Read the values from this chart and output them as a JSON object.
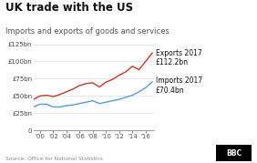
{
  "title": "UK trade with the US",
  "subtitle": "Imports and exports of goods and services",
  "source": "Source: Office for National Statistics",
  "export_label": "Exports 2017",
  "export_value": "£112.2bn",
  "import_label": "Imports 2017",
  "import_value": "£70.4bn",
  "years": [
    1999,
    2000,
    2001,
    2002,
    2003,
    2004,
    2005,
    2006,
    2007,
    2008,
    2009,
    2010,
    2011,
    2012,
    2013,
    2014,
    2015,
    2016,
    2017
  ],
  "exports": [
    45,
    50,
    51,
    49,
    52,
    56,
    60,
    65,
    68,
    69,
    63,
    70,
    74,
    80,
    85,
    93,
    88,
    100,
    112.2
  ],
  "imports": [
    34,
    38,
    38,
    34,
    34,
    36,
    37,
    39,
    41,
    43,
    39,
    41,
    43,
    45,
    48,
    51,
    56,
    62,
    70.4
  ],
  "export_color": "#c0392b",
  "import_color": "#5b9bd5",
  "ylim": [
    0,
    130
  ],
  "yticks": [
    0,
    25,
    50,
    75,
    100,
    125
  ],
  "ytick_labels": [
    "0",
    "£25bn",
    "£50bn",
    "£75bn",
    "£100bn",
    "£125bn"
  ],
  "xticks": [
    2000,
    2002,
    2004,
    2006,
    2008,
    2010,
    2012,
    2014,
    2016
  ],
  "xtick_labels": [
    "'00",
    "'02",
    "'04",
    "'06",
    "'08",
    "'10",
    "'12",
    "'14",
    "'16"
  ],
  "bg_color": "#ffffff",
  "grid_color": "#dddddd",
  "title_fontsize": 8.5,
  "subtitle_fontsize": 6.0,
  "annotation_fontsize": 5.5,
  "tick_fontsize": 5.0,
  "source_fontsize": 4.2,
  "bbc_fontsize": 5.5
}
